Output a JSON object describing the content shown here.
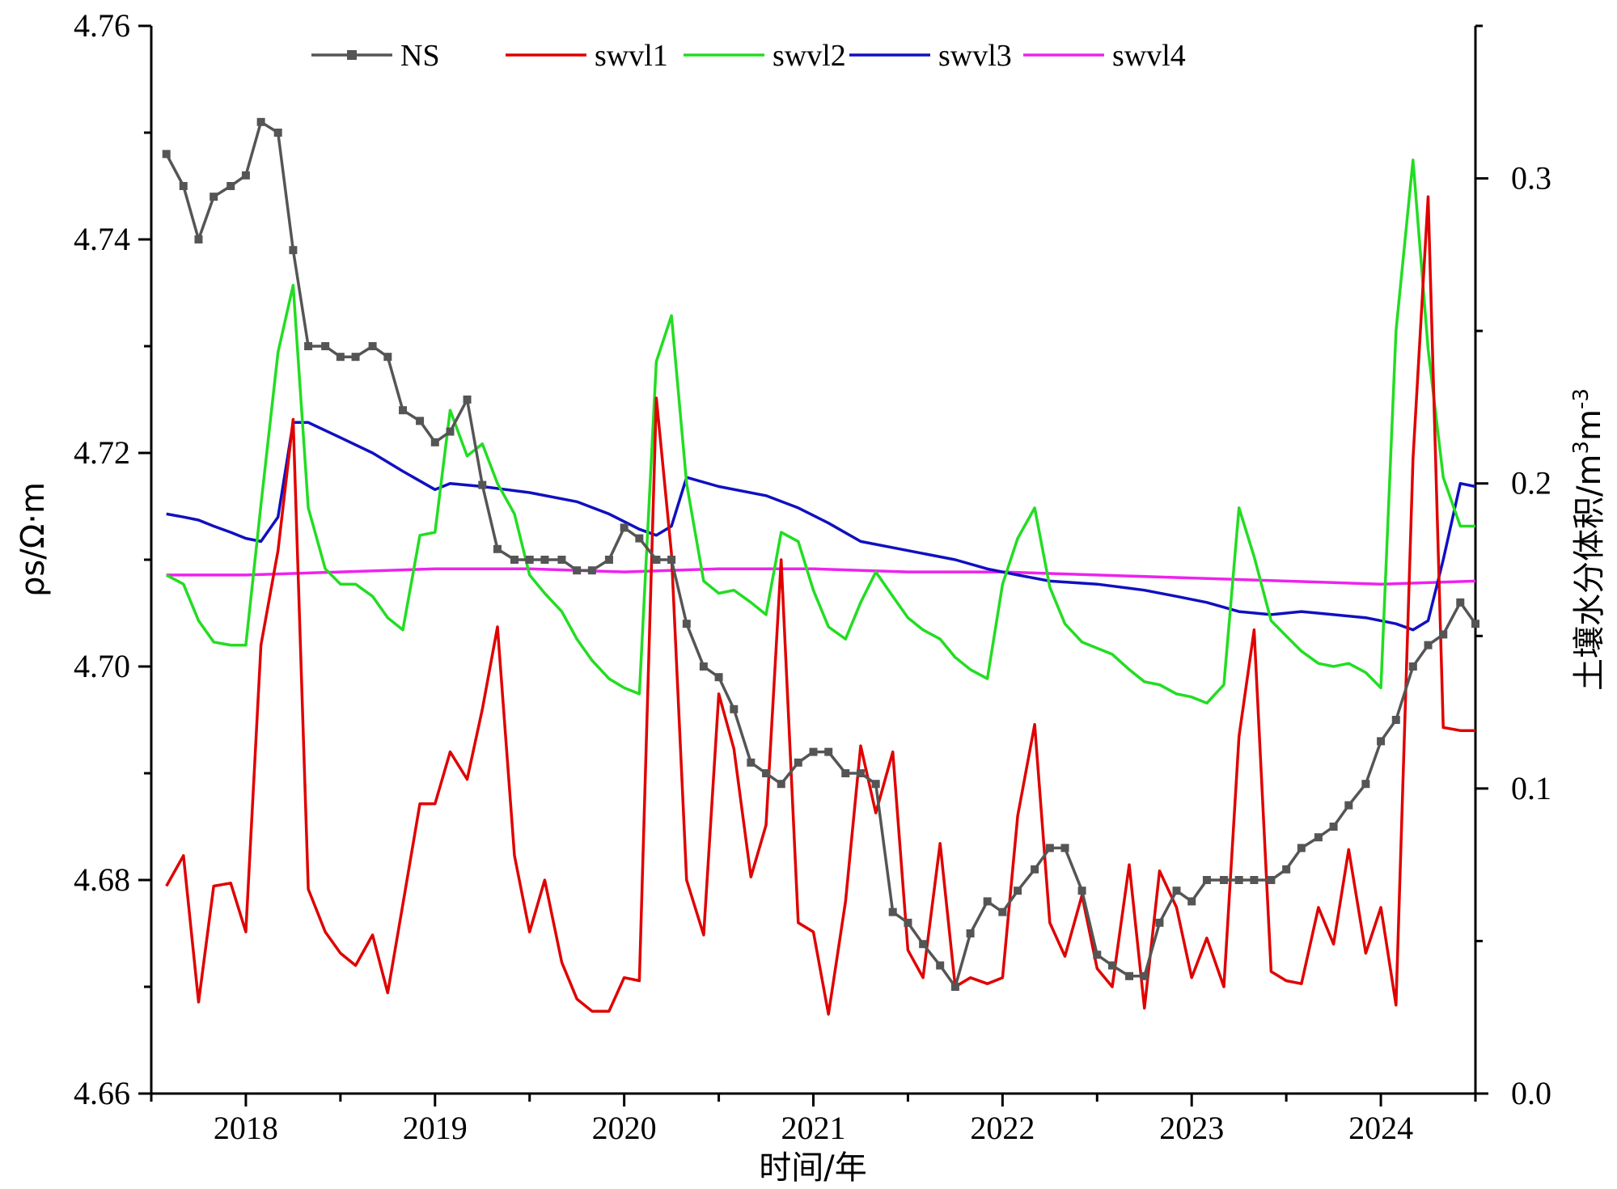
{
  "chart_data": {
    "type": "line",
    "title": "",
    "xlabel": "时间/年",
    "ylabel_left": "ρs/Ω·m",
    "ylabel_right_base": "土壤水分体积/m",
    "ylabel_right_sup1": "3",
    "ylabel_right_mid": "m",
    "ylabel_right_sup2": "-3",
    "x_ticks": [
      "2018",
      "2019",
      "2020",
      "2021",
      "2022",
      "2023",
      "2024"
    ],
    "xlim": [
      2017.5,
      2024.5
    ],
    "ylim_left": [
      4.66,
      4.76
    ],
    "ylim_right": [
      0.0,
      0.35
    ],
    "y_left_ticks": [
      "4.66",
      "4.68",
      "4.70",
      "4.72",
      "4.74",
      "4.76"
    ],
    "y_right_ticks": [
      "0.0",
      "0.1",
      "0.2",
      "0.3"
    ],
    "legend_position": "top",
    "series": [
      {
        "name": "NS",
        "axis": "left",
        "color": "#555555",
        "marker": "square",
        "x": [
          2017.58,
          2017.67,
          2017.75,
          2017.83,
          2017.92,
          2018.0,
          2018.08,
          2018.17,
          2018.25,
          2018.33,
          2018.42,
          2018.5,
          2018.58,
          2018.67,
          2018.75,
          2018.83,
          2018.92,
          2019.0,
          2019.08,
          2019.17,
          2019.25,
          2019.33,
          2019.42,
          2019.5,
          2019.58,
          2019.67,
          2019.75,
          2019.83,
          2019.92,
          2020.0,
          2020.08,
          2020.17,
          2020.25,
          2020.33,
          2020.42,
          2020.5,
          2020.58,
          2020.67,
          2020.75,
          2020.83,
          2020.92,
          2021.0,
          2021.08,
          2021.17,
          2021.25,
          2021.33,
          2021.42,
          2021.5,
          2021.58,
          2021.67,
          2021.75,
          2021.83,
          2021.92,
          2022.0,
          2022.08,
          2022.17,
          2022.25,
          2022.33,
          2022.42,
          2022.5,
          2022.58,
          2022.67,
          2022.75,
          2022.83,
          2022.92,
          2023.0,
          2023.08,
          2023.17,
          2023.25,
          2023.33,
          2023.42,
          2023.5,
          2023.58,
          2023.67,
          2023.75,
          2023.83,
          2023.92,
          2024.0,
          2024.08,
          2024.17,
          2024.25,
          2024.33,
          2024.42,
          2024.5
        ],
        "values": [
          4.748,
          4.745,
          4.74,
          4.744,
          4.745,
          4.746,
          4.751,
          4.75,
          4.739,
          4.73,
          4.73,
          4.729,
          4.729,
          4.73,
          4.729,
          4.724,
          4.723,
          4.721,
          4.722,
          4.725,
          4.717,
          4.711,
          4.71,
          4.71,
          4.71,
          4.71,
          4.709,
          4.709,
          4.71,
          4.713,
          4.712,
          4.71,
          4.71,
          4.704,
          4.7,
          4.699,
          4.696,
          4.691,
          4.69,
          4.689,
          4.691,
          4.692,
          4.692,
          4.69,
          4.69,
          4.689,
          4.677,
          4.676,
          4.674,
          4.672,
          4.67,
          4.675,
          4.678,
          4.677,
          4.679,
          4.681,
          4.683,
          4.683,
          4.679,
          4.673,
          4.672,
          4.671,
          4.671,
          4.676,
          4.679,
          4.678,
          4.68,
          4.68,
          4.68,
          4.68,
          4.68,
          4.681,
          4.683,
          4.684,
          4.685,
          4.687,
          4.689,
          4.693,
          4.695,
          4.7,
          4.702,
          4.703,
          4.706,
          4.704
        ]
      },
      {
        "name": "swvl1",
        "axis": "right",
        "color": "#e00000",
        "marker": "none",
        "x": [
          2017.58,
          2017.67,
          2017.75,
          2017.83,
          2017.92,
          2018.0,
          2018.08,
          2018.17,
          2018.25,
          2018.33,
          2018.42,
          2018.5,
          2018.58,
          2018.67,
          2018.75,
          2018.83,
          2018.92,
          2019.0,
          2019.08,
          2019.17,
          2019.25,
          2019.33,
          2019.42,
          2019.5,
          2019.58,
          2019.67,
          2019.75,
          2019.83,
          2019.92,
          2020.0,
          2020.08,
          2020.17,
          2020.25,
          2020.33,
          2020.42,
          2020.5,
          2020.58,
          2020.67,
          2020.75,
          2020.83,
          2020.92,
          2021.0,
          2021.08,
          2021.17,
          2021.25,
          2021.33,
          2021.42,
          2021.5,
          2021.58,
          2021.67,
          2021.75,
          2021.83,
          2021.92,
          2022.0,
          2022.08,
          2022.17,
          2022.25,
          2022.33,
          2022.42,
          2022.5,
          2022.58,
          2022.67,
          2022.75,
          2022.83,
          2022.92,
          2023.0,
          2023.08,
          2023.17,
          2023.25,
          2023.33,
          2023.42,
          2023.5,
          2023.58,
          2023.67,
          2023.75,
          2023.83,
          2023.92,
          2024.0,
          2024.08,
          2024.17,
          2024.25,
          2024.33,
          2024.42,
          2024.5
        ],
        "values": [
          0.068,
          0.078,
          0.03,
          0.068,
          0.069,
          0.053,
          0.147,
          0.178,
          0.221,
          0.067,
          0.053,
          0.046,
          0.042,
          0.052,
          0.033,
          0.062,
          0.095,
          0.095,
          0.112,
          0.103,
          0.126,
          0.153,
          0.078,
          0.053,
          0.07,
          0.043,
          0.031,
          0.027,
          0.027,
          0.038,
          0.037,
          0.228,
          0.177,
          0.07,
          0.052,
          0.131,
          0.113,
          0.071,
          0.088,
          0.175,
          0.056,
          0.053,
          0.026,
          0.063,
          0.114,
          0.092,
          0.112,
          0.047,
          0.038,
          0.082,
          0.035,
          0.038,
          0.036,
          0.038,
          0.091,
          0.121,
          0.056,
          0.045,
          0.065,
          0.041,
          0.035,
          0.075,
          0.028,
          0.073,
          0.061,
          0.038,
          0.051,
          0.035,
          0.117,
          0.152,
          0.04,
          0.037,
          0.036,
          0.061,
          0.049,
          0.08,
          0.046,
          0.061,
          0.029,
          0.208,
          0.294,
          0.12,
          0.119,
          0.119
        ]
      },
      {
        "name": "swvl2",
        "axis": "right",
        "color": "#22dd22",
        "marker": "none",
        "x": [
          2017.58,
          2017.67,
          2017.75,
          2017.83,
          2017.92,
          2018.0,
          2018.08,
          2018.17,
          2018.25,
          2018.33,
          2018.42,
          2018.5,
          2018.58,
          2018.67,
          2018.75,
          2018.83,
          2018.92,
          2019.0,
          2019.08,
          2019.17,
          2019.25,
          2019.33,
          2019.42,
          2019.5,
          2019.58,
          2019.67,
          2019.75,
          2019.83,
          2019.92,
          2020.0,
          2020.08,
          2020.17,
          2020.25,
          2020.33,
          2020.42,
          2020.5,
          2020.58,
          2020.67,
          2020.75,
          2020.83,
          2020.92,
          2021.0,
          2021.08,
          2021.17,
          2021.25,
          2021.33,
          2021.42,
          2021.5,
          2021.58,
          2021.67,
          2021.75,
          2021.83,
          2021.92,
          2022.0,
          2022.08,
          2022.17,
          2022.25,
          2022.33,
          2022.42,
          2022.5,
          2022.58,
          2022.67,
          2022.75,
          2022.83,
          2022.92,
          2023.0,
          2023.08,
          2023.17,
          2023.25,
          2023.33,
          2023.42,
          2023.5,
          2023.58,
          2023.67,
          2023.75,
          2023.83,
          2023.92,
          2024.0,
          2024.08,
          2024.17,
          2024.25,
          2024.33,
          2024.42,
          2024.5
        ],
        "values": [
          0.17,
          0.167,
          0.155,
          0.148,
          0.147,
          0.147,
          0.193,
          0.243,
          0.265,
          0.192,
          0.172,
          0.167,
          0.167,
          0.163,
          0.156,
          0.152,
          0.183,
          0.184,
          0.224,
          0.209,
          0.213,
          0.2,
          0.19,
          0.17,
          0.164,
          0.158,
          0.149,
          0.142,
          0.136,
          0.133,
          0.131,
          0.24,
          0.255,
          0.2,
          0.168,
          0.164,
          0.165,
          0.161,
          0.157,
          0.184,
          0.181,
          0.165,
          0.153,
          0.149,
          0.161,
          0.171,
          0.163,
          0.156,
          0.152,
          0.149,
          0.143,
          0.139,
          0.136,
          0.167,
          0.182,
          0.192,
          0.166,
          0.154,
          0.148,
          0.146,
          0.144,
          0.139,
          0.135,
          0.134,
          0.131,
          0.13,
          0.128,
          0.134,
          0.192,
          0.176,
          0.155,
          0.15,
          0.145,
          0.141,
          0.14,
          0.141,
          0.138,
          0.133,
          0.25,
          0.306,
          0.244,
          0.202,
          0.186,
          0.186
        ]
      },
      {
        "name": "swvl3",
        "axis": "right",
        "color": "#1010c0",
        "marker": "none",
        "x": [
          2017.58,
          2017.67,
          2017.75,
          2017.83,
          2017.92,
          2018.0,
          2018.08,
          2018.17,
          2018.25,
          2018.33,
          2018.5,
          2018.67,
          2018.83,
          2019.0,
          2019.08,
          2019.25,
          2019.5,
          2019.75,
          2019.92,
          2020.08,
          2020.17,
          2020.25,
          2020.33,
          2020.5,
          2020.75,
          2020.92,
          2021.08,
          2021.25,
          2021.5,
          2021.75,
          2021.92,
          2022.08,
          2022.25,
          2022.5,
          2022.75,
          2022.92,
          2023.08,
          2023.25,
          2023.42,
          2023.58,
          2023.75,
          2023.92,
          2024.08,
          2024.17,
          2024.25,
          2024.33,
          2024.42,
          2024.5
        ],
        "values": [
          0.19,
          0.189,
          0.188,
          0.186,
          0.184,
          0.182,
          0.181,
          0.189,
          0.22,
          0.22,
          0.215,
          0.21,
          0.204,
          0.198,
          0.2,
          0.199,
          0.197,
          0.194,
          0.19,
          0.185,
          0.183,
          0.186,
          0.202,
          0.199,
          0.196,
          0.192,
          0.187,
          0.181,
          0.178,
          0.175,
          0.172,
          0.17,
          0.168,
          0.167,
          0.165,
          0.163,
          0.161,
          0.158,
          0.157,
          0.158,
          0.157,
          0.156,
          0.154,
          0.152,
          0.155,
          0.175,
          0.2,
          0.199
        ]
      },
      {
        "name": "swvl4",
        "axis": "right",
        "color": "#ee22ee",
        "marker": "none",
        "x": [
          2017.58,
          2018.0,
          2018.5,
          2019.0,
          2019.5,
          2020.0,
          2020.5,
          2021.0,
          2021.5,
          2022.0,
          2022.5,
          2023.0,
          2023.5,
          2024.0,
          2024.5
        ],
        "values": [
          0.17,
          0.17,
          0.171,
          0.172,
          0.172,
          0.171,
          0.172,
          0.172,
          0.171,
          0.171,
          0.17,
          0.169,
          0.168,
          0.167,
          0.168
        ]
      }
    ]
  }
}
